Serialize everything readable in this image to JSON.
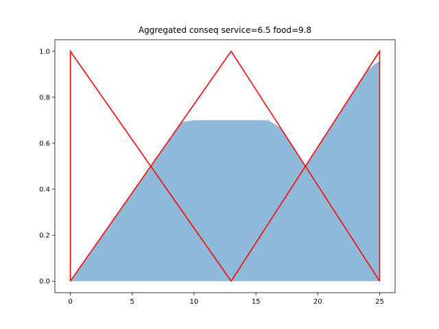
{
  "chart_data": {
    "type": "area",
    "title": "Aggregated conseq service=6.5 food=9.8",
    "xlabel": "",
    "ylabel": "",
    "xlim": [
      -1.25,
      26.25
    ],
    "ylim": [
      -0.05,
      1.05
    ],
    "xticks": [
      0,
      5,
      10,
      15,
      20,
      25
    ],
    "yticks": [
      0.0,
      0.2,
      0.4,
      0.6,
      0.8,
      1.0
    ],
    "xtick_labels": [
      "0",
      "5",
      "10",
      "15",
      "20",
      "25"
    ],
    "ytick_labels": [
      "0.0",
      "0.2",
      "0.4",
      "0.6",
      "0.8",
      "1.0"
    ],
    "grid": false,
    "aggregated_area": {
      "color": "#8fb9d8",
      "x": [
        0,
        1,
        2,
        3,
        4,
        5,
        6,
        7,
        8,
        9,
        10,
        11,
        12,
        13,
        14,
        15,
        16,
        17,
        18,
        19,
        20,
        21,
        22,
        23,
        24,
        25
      ],
      "y": [
        0.0,
        0.077,
        0.154,
        0.231,
        0.308,
        0.385,
        0.462,
        0.538,
        0.615,
        0.692,
        0.7,
        0.7,
        0.7,
        0.7,
        0.7,
        0.7,
        0.7,
        0.667,
        0.583,
        0.5,
        0.583,
        0.667,
        0.75,
        0.833,
        0.917,
        0.96
      ]
    },
    "membership_lines": {
      "color": "#ff0000",
      "series": [
        {
          "x": [
            0,
            0,
            13
          ],
          "y": [
            0,
            1,
            0
          ]
        },
        {
          "x": [
            0,
            13,
            25
          ],
          "y": [
            0,
            1,
            0
          ]
        },
        {
          "x": [
            13,
            25,
            25
          ],
          "y": [
            0,
            1,
            0
          ]
        }
      ]
    }
  }
}
